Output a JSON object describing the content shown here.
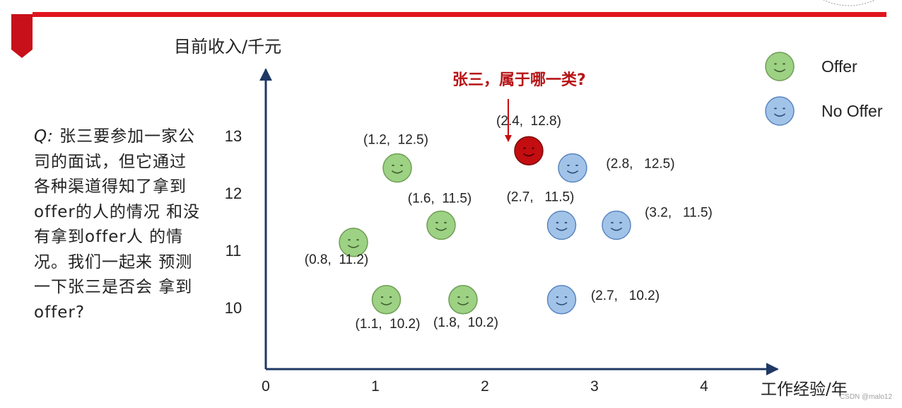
{
  "question": {
    "label": "Q:",
    "text": "张三要参加一家公司的面试，但它通过各种渠道得知了拿到offer的人的情况 和没有拿到offer人 的情况。我们一起来 预测一下张三是否会 拿到offer?"
  },
  "watermark": "CSDN @malo12",
  "colors": {
    "accent": "#e0141e",
    "offer": "#9dd183",
    "no_offer": "#a2c3e8",
    "target": "#c30d10",
    "axis": "#1f3864"
  },
  "chart_data": {
    "type": "scatter",
    "xlabel": "工作经验/年",
    "ylabel": "目前收入/千元",
    "x_ticks": [
      "0",
      "1",
      "2",
      "3",
      "4"
    ],
    "y_ticks": [
      "10",
      "11",
      "12",
      "13"
    ],
    "xlim": [
      0,
      4.8
    ],
    "ylim": [
      9.5,
      14.2
    ],
    "legend": {
      "placement": "top-right",
      "entries": [
        {
          "label": "Offer",
          "series": "offer"
        },
        {
          "label": "No Offer",
          "series": "no_offer"
        }
      ]
    },
    "annotation": {
      "text": "张三，属于哪一类?",
      "point": "target"
    },
    "series": [
      {
        "id": "offer",
        "name": "Offer",
        "points": [
          {
            "x": 1.2,
            "y": 12.5,
            "label": "(1.2,  12.5)"
          },
          {
            "x": 1.6,
            "y": 11.5,
            "label": "(1.6,  11.5)"
          },
          {
            "x": 0.8,
            "y": 11.2,
            "label": "(0.8,  11.2)"
          },
          {
            "x": 1.1,
            "y": 10.2,
            "label": "(1.1,  10.2)"
          },
          {
            "x": 1.8,
            "y": 10.2,
            "label": "(1.8,  10.2)"
          }
        ]
      },
      {
        "id": "no_offer",
        "name": "No Offer",
        "points": [
          {
            "x": 2.8,
            "y": 12.5,
            "label": "(2.8,   12.5)"
          },
          {
            "x": 2.7,
            "y": 11.5,
            "label": "(2.7,   11.5)"
          },
          {
            "x": 3.2,
            "y": 11.5,
            "label": "(3.2,   11.5)"
          },
          {
            "x": 2.7,
            "y": 10.2,
            "label": "(2.7,   10.2)"
          }
        ]
      },
      {
        "id": "target",
        "points": [
          {
            "x": 2.4,
            "y": 12.8,
            "label": "(2.4,  12.8)"
          }
        ]
      }
    ]
  }
}
